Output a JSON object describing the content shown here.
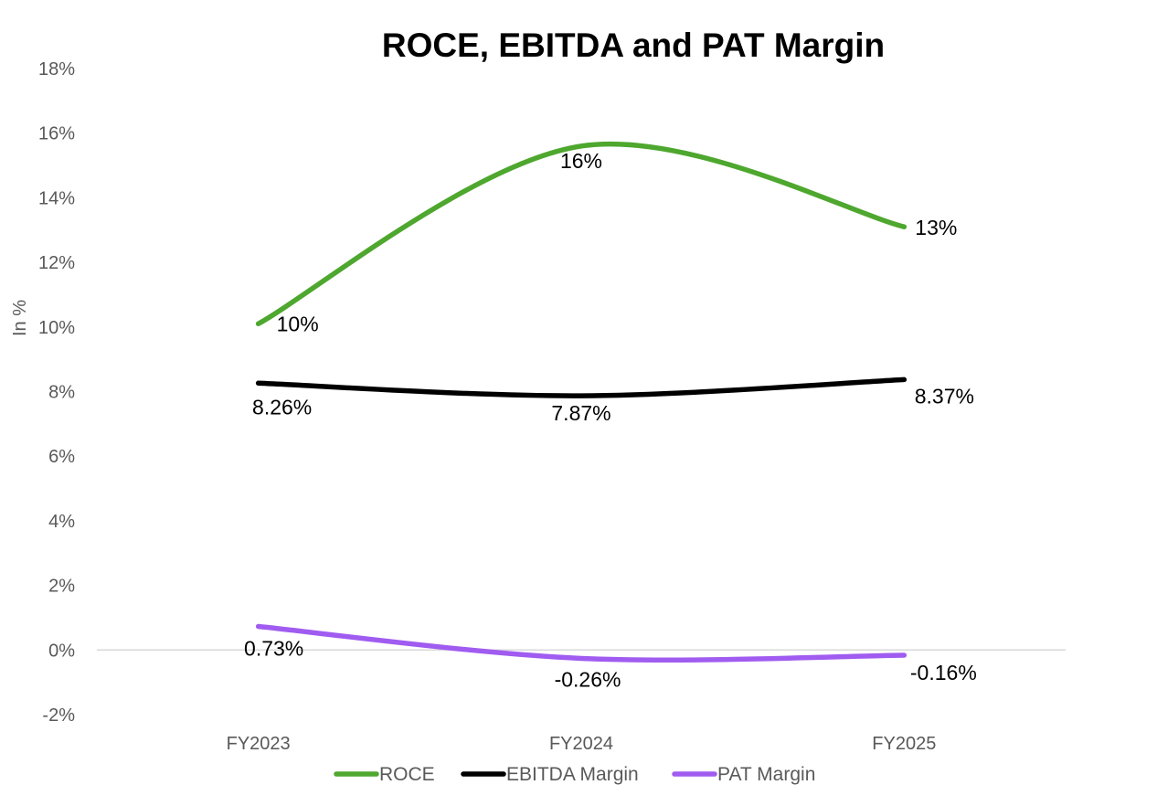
{
  "chart_data": {
    "type": "line",
    "title": "ROCE, EBITDA and PAT Margin",
    "ylabel": "In %",
    "xlabel": "",
    "categories": [
      "FY2023",
      "FY2024",
      "FY2025"
    ],
    "ylim": [
      -2,
      18
    ],
    "yticks": [
      -2,
      0,
      2,
      4,
      6,
      8,
      10,
      12,
      14,
      16,
      18
    ],
    "ytick_labels": [
      "-2%",
      "0%",
      "2%",
      "4%",
      "6%",
      "8%",
      "10%",
      "12%",
      "14%",
      "16%",
      "18%"
    ],
    "smooth": true,
    "grid": false,
    "legend_position": "bottom",
    "series": [
      {
        "name": "ROCE",
        "color": "#4EA72E",
        "values": [
          10.1,
          15.6,
          13.1
        ],
        "labels": [
          "10%",
          "16%",
          "13%"
        ]
      },
      {
        "name": "EBITDA Margin",
        "color": "#000000",
        "values": [
          8.26,
          7.87,
          8.37
        ],
        "labels": [
          "8.26%",
          "7.87%",
          "8.37%"
        ]
      },
      {
        "name": "PAT Margin",
        "color": "#A05CF0",
        "values": [
          0.73,
          -0.26,
          -0.16
        ],
        "labels": [
          "0.73%",
          "-0.26%",
          "-0.16%"
        ]
      }
    ]
  }
}
